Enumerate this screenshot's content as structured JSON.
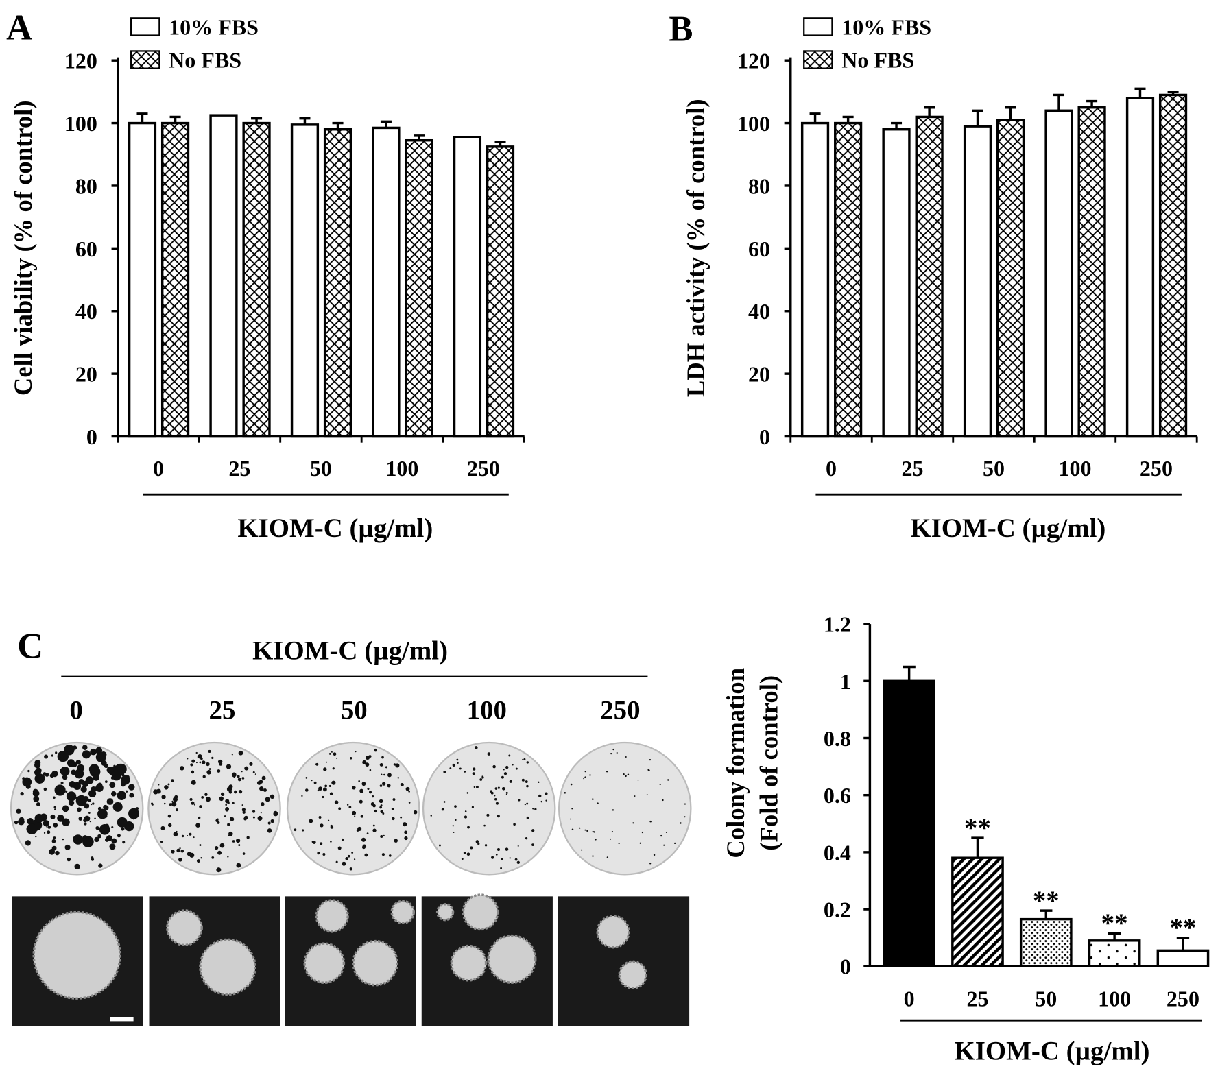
{
  "chart_data": [
    {
      "panel": "A",
      "type": "bar",
      "ylabel": "Cell viability (% of control)",
      "xlabel": "KIOM-C (µg/ml)",
      "ylim": [
        0,
        120
      ],
      "yticks": [
        "0",
        "20",
        "40",
        "60",
        "80",
        "100",
        "120"
      ],
      "categories": [
        "0",
        "25",
        "50",
        "100",
        "250"
      ],
      "series": [
        {
          "name": "10% FBS",
          "pattern": "white",
          "values": [
            100,
            102.5,
            99.5,
            98.5,
            95.5
          ],
          "errors": [
            3,
            0,
            2,
            2,
            0
          ]
        },
        {
          "name": "No FBS",
          "pattern": "crosshatch",
          "values": [
            100,
            100,
            98,
            94.5,
            92.5
          ],
          "errors": [
            2,
            1.5,
            2,
            1.5,
            1.5
          ]
        }
      ]
    },
    {
      "panel": "B",
      "type": "bar",
      "ylabel": "LDH activity (% of control)",
      "xlabel": "KIOM-C (µg/ml)",
      "ylim": [
        0,
        120
      ],
      "yticks": [
        "0",
        "20",
        "40",
        "60",
        "80",
        "100",
        "120"
      ],
      "categories": [
        "0",
        "25",
        "50",
        "100",
        "250"
      ],
      "series": [
        {
          "name": "10% FBS",
          "pattern": "white",
          "values": [
            100,
            98,
            99,
            104,
            108
          ],
          "errors": [
            3,
            2,
            5,
            5,
            3
          ]
        },
        {
          "name": "No FBS",
          "pattern": "crosshatch",
          "values": [
            100,
            102,
            101,
            105,
            109
          ],
          "errors": [
            2,
            3,
            4,
            2,
            1
          ]
        }
      ]
    },
    {
      "panel": "C",
      "type": "bar",
      "ylabel": [
        "Colony formation",
        "(Fold of control)"
      ],
      "xlabel": "KIOM-C (µg/ml)",
      "ylim": [
        0,
        1.2
      ],
      "yticks": [
        "0",
        "0.2",
        "0.4",
        "0.6",
        "0.8",
        "1",
        "1.2"
      ],
      "categories": [
        "0",
        "25",
        "50",
        "100",
        "250"
      ],
      "values": [
        1.0,
        0.38,
        0.165,
        0.09,
        0.055
      ],
      "errors": [
        0.05,
        0.07,
        0.03,
        0.025,
        0.045
      ],
      "patterns": [
        "black",
        "stripes",
        "dense-dots",
        "sparse-dots",
        "white"
      ],
      "annotations": [
        "",
        "**",
        "**",
        "**",
        "**"
      ]
    }
  ],
  "panel_labels": {
    "a": "A",
    "b": "B",
    "c": "C"
  },
  "images": {
    "title": "KIOM-C (µg/ml)",
    "doses": [
      "0",
      "25",
      "50",
      "100",
      "250"
    ],
    "colony_density": [
      1.0,
      0.7,
      0.55,
      0.35,
      0.1
    ]
  }
}
